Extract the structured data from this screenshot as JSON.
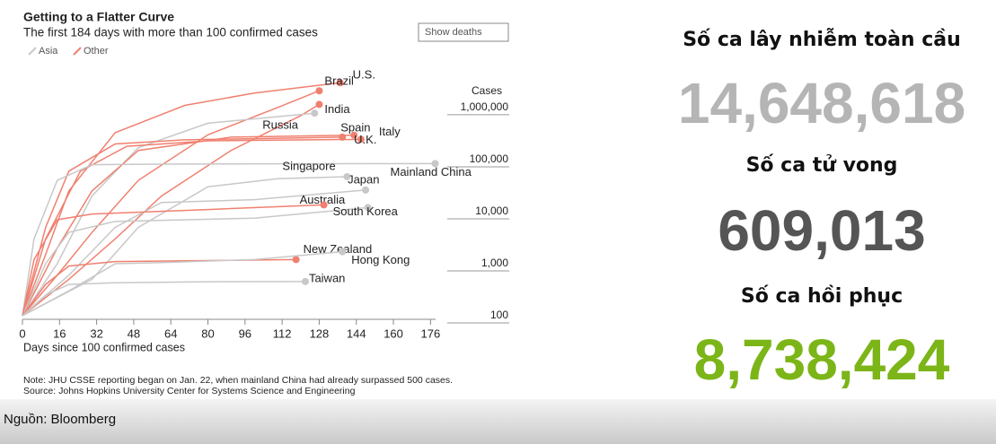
{
  "chart_data": {
    "type": "line",
    "title": "Getting to a Flatter Curve",
    "subtitle": "The first 184 days with more than 100 confirmed cases",
    "button": "Show deaths",
    "legend": [
      {
        "name": "Asia",
        "color": "#c8c8c8"
      },
      {
        "name": "Other",
        "color": "#f08070"
      }
    ],
    "y_label": "Cases",
    "x_label": "Days since 100 confirmed cases",
    "log_y": true,
    "xlim": [
      0,
      184
    ],
    "ylim": [
      100,
      4000000
    ],
    "xticks": [
      0,
      16,
      32,
      48,
      64,
      80,
      96,
      112,
      128,
      144,
      160,
      176
    ],
    "yticks": [
      {
        "value": 1000000,
        "label": "1,000,000"
      },
      {
        "value": 100000,
        "label": "100,000"
      },
      {
        "value": 10000,
        "label": "10,000"
      },
      {
        "value": 1000,
        "label": "1,000"
      },
      100
    ],
    "series": [
      {
        "name": "U.S.",
        "color": "#f08070",
        "x": [
          0,
          10,
          20,
          40,
          70,
          100,
          137
        ],
        "values": [
          100,
          1500,
          25000,
          330000,
          1100000,
          1900000,
          3000000
        ]
      },
      {
        "name": "Brazil",
        "color": "#f08070",
        "x": [
          0,
          15,
          30,
          50,
          80,
          110,
          128
        ],
        "values": [
          100,
          600,
          4000,
          40000,
          300000,
          1000000,
          2100000
        ]
      },
      {
        "name": "India",
        "color": "#f08070",
        "x": [
          0,
          20,
          40,
          60,
          90,
          120,
          128
        ],
        "values": [
          100,
          500,
          3000,
          20000,
          150000,
          700000,
          1150000
        ]
      },
      {
        "name": "Russia",
        "color": "#c8c8c8",
        "x": [
          0,
          15,
          30,
          50,
          80,
          126
        ],
        "values": [
          100,
          1000,
          20000,
          170000,
          500000,
          780000
        ]
      },
      {
        "name": "Spain",
        "color": "#f08070",
        "x": [
          0,
          10,
          20,
          40,
          70,
          138
        ],
        "values": [
          100,
          5000,
          60000,
          200000,
          240000,
          270000
        ]
      },
      {
        "name": "Italy",
        "color": "#f08070",
        "x": [
          0,
          10,
          25,
          45,
          80,
          146
        ],
        "values": [
          100,
          3000,
          60000,
          180000,
          230000,
          245000
        ]
      },
      {
        "name": "U.K.",
        "color": "#f08070",
        "x": [
          0,
          15,
          30,
          50,
          90,
          143
        ],
        "values": [
          100,
          2000,
          25000,
          150000,
          270000,
          295000
        ]
      },
      {
        "name": "Mainland China",
        "color": "#c8c8c8",
        "x": [
          0,
          5,
          15,
          30,
          60,
          178
        ],
        "values": [
          100,
          3000,
          40000,
          80000,
          82000,
          84000
        ]
      },
      {
        "name": "Singapore",
        "color": "#c8c8c8",
        "x": [
          0,
          30,
          50,
          80,
          110,
          140
        ],
        "values": [
          100,
          500,
          5000,
          30000,
          43000,
          47000
        ]
      },
      {
        "name": "Japan",
        "color": "#c8c8c8",
        "x": [
          0,
          20,
          40,
          60,
          100,
          148
        ],
        "values": [
          100,
          600,
          5000,
          15000,
          17000,
          26000
        ]
      },
      {
        "name": "Australia",
        "color": "#c8c8c8",
        "x": [
          0,
          10,
          20,
          40,
          100,
          149
        ],
        "values": [
          100,
          1000,
          4000,
          6500,
          7500,
          12000
        ]
      },
      {
        "name": "South Korea",
        "color": "#f08070",
        "x": [
          0,
          5,
          15,
          30,
          80,
          130
        ],
        "values": [
          100,
          1200,
          7000,
          9000,
          11000,
          13500
        ]
      },
      {
        "name": "New Zealand",
        "color": "#f08070",
        "x": [
          0,
          10,
          20,
          40,
          80,
          118
        ],
        "values": [
          100,
          400,
          900,
          1100,
          1150,
          1200
        ]
      },
      {
        "name": "Hong Kong",
        "color": "#c8c8c8",
        "x": [
          0,
          20,
          40,
          60,
          100,
          138
        ],
        "values": [
          100,
          300,
          1000,
          1050,
          1200,
          1700
        ]
      },
      {
        "name": "Taiwan",
        "color": "#c8c8c8",
        "x": [
          0,
          10,
          20,
          40,
          80,
          122
        ],
        "values": [
          100,
          250,
          400,
          430,
          450,
          455
        ]
      }
    ],
    "note": "Note: JHU CSSE reporting began on Jan. 22, when mainland China had already surpassed 500 cases.",
    "source": "Source: Johns Hopkins University Center for Systems Science and Engineering"
  },
  "stats": [
    {
      "label": "Số ca lây nhiễm toàn cầu",
      "value": "14,648,618"
    },
    {
      "label": "Số ca tử vong",
      "value": "609,013"
    },
    {
      "label": "Số ca hồi phục",
      "value": "8,738,424"
    }
  ],
  "footer": "Nguồn: Bloomberg"
}
